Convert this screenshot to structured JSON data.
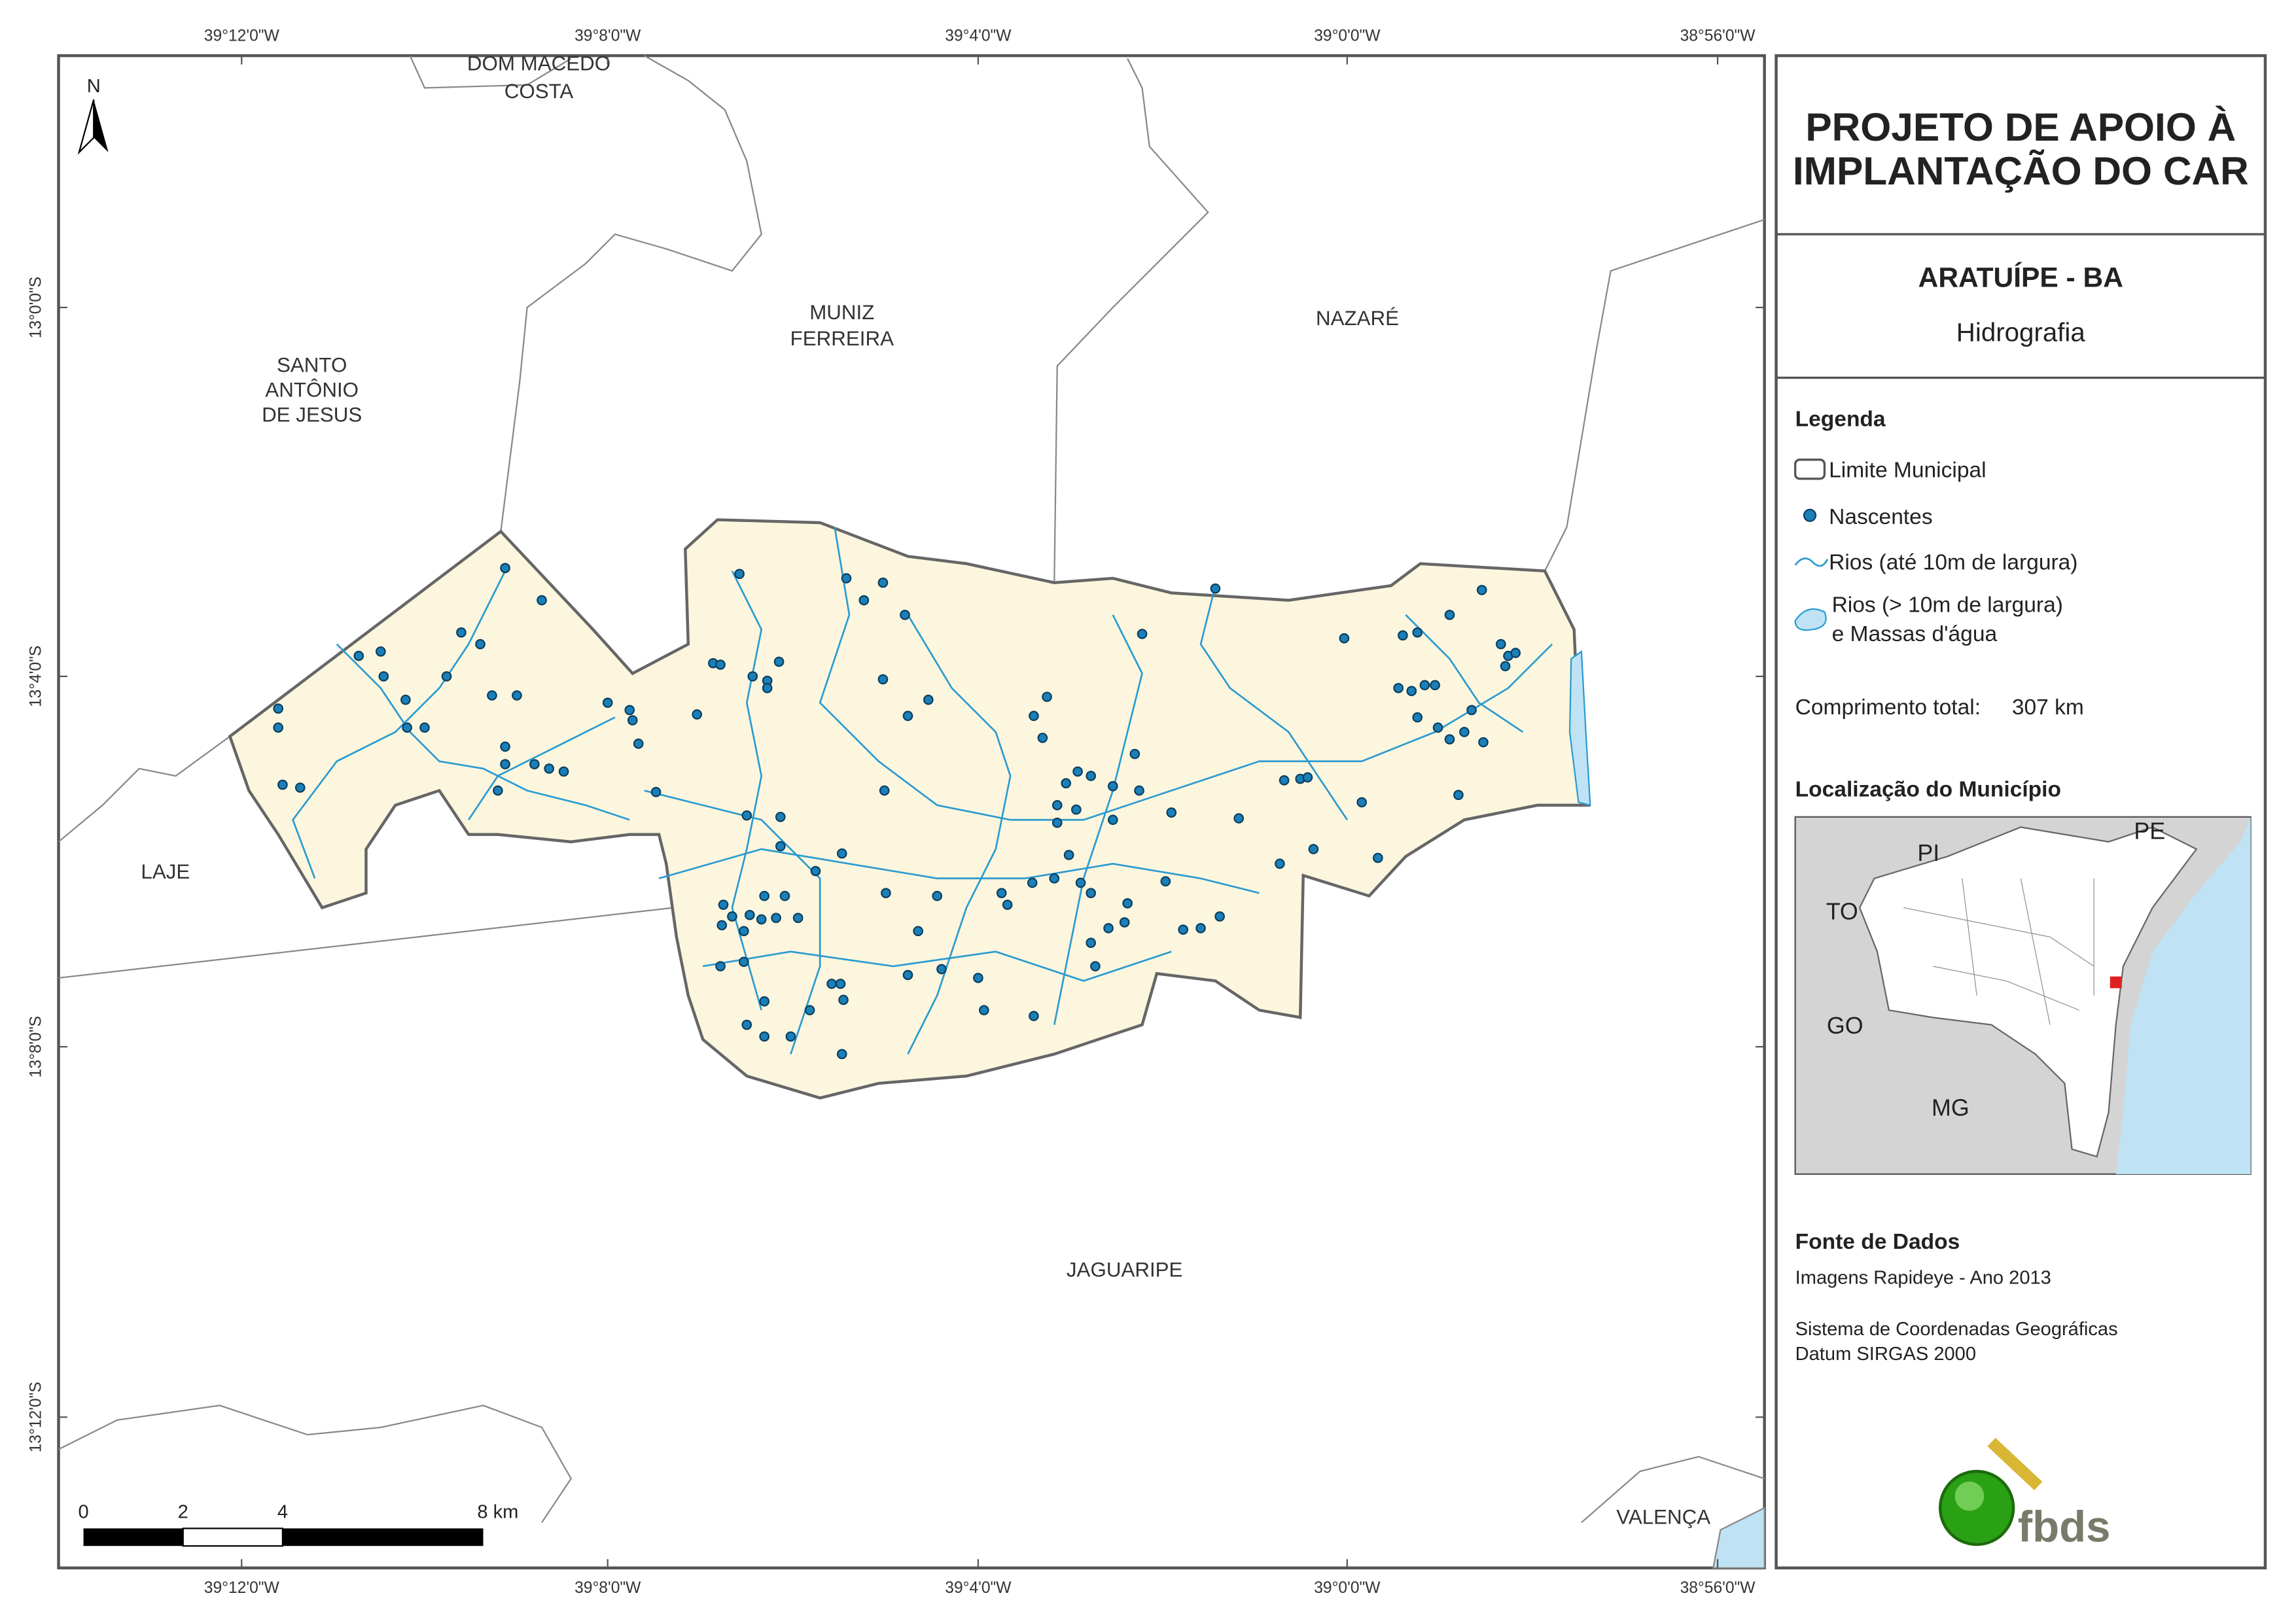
{
  "header": {
    "title_lines": [
      "PROJETO DE APOIO À",
      "IMPLANTAÇÃO DO CAR"
    ],
    "municipality": "ARATUÍPE - BA",
    "theme": "Hidrografia"
  },
  "legend": {
    "title": "Legenda",
    "items": [
      "Limite Municipal",
      "Nascentes",
      "Rios (até 10m de largura)"
    ],
    "water_lines": [
      "Rios (> 10m de largura)",
      "e Massas d'água"
    ]
  },
  "length": {
    "label": "Comprimento total:",
    "value": "307 km"
  },
  "location": {
    "title": "Localização do Município",
    "states": [
      "PI",
      "PE",
      "TO",
      "GO",
      "MG"
    ]
  },
  "sources": {
    "title": "Fonte de Dados",
    "lines": [
      "Imagens Rapideye - Ano 2013",
      "Sistema de Coordenadas Geográficas",
      "Datum SIRGAS 2000"
    ]
  },
  "map": {
    "north": "N",
    "municipalities": [
      {
        "lines": [
          "DOM MACEDO",
          "COSTA"
        ]
      },
      {
        "lines": [
          "MUNIZ",
          "FERREIRA"
        ]
      },
      {
        "lines": [
          "NAZARÉ"
        ]
      },
      {
        "lines": [
          "SANTO",
          "ANTÔNIO",
          "DE JESUS"
        ]
      },
      {
        "lines": [
          "LAJE"
        ]
      },
      {
        "lines": [
          "JAGUARIPE"
        ]
      },
      {
        "lines": [
          "VALENÇA"
        ]
      }
    ],
    "longitudes": [
      "39°12'0\"W",
      "39°8'0\"W",
      "39°4'0\"W",
      "39°0'0\"W",
      "38°56'0\"W"
    ],
    "latitudes": [
      "13°0'0\"S",
      "13°4'0\"S",
      "13°8'0\"S",
      "13°12'0\"S"
    ],
    "scale_labels": [
      "0",
      "2",
      "4",
      "8 km"
    ]
  },
  "logo": "fbds"
}
